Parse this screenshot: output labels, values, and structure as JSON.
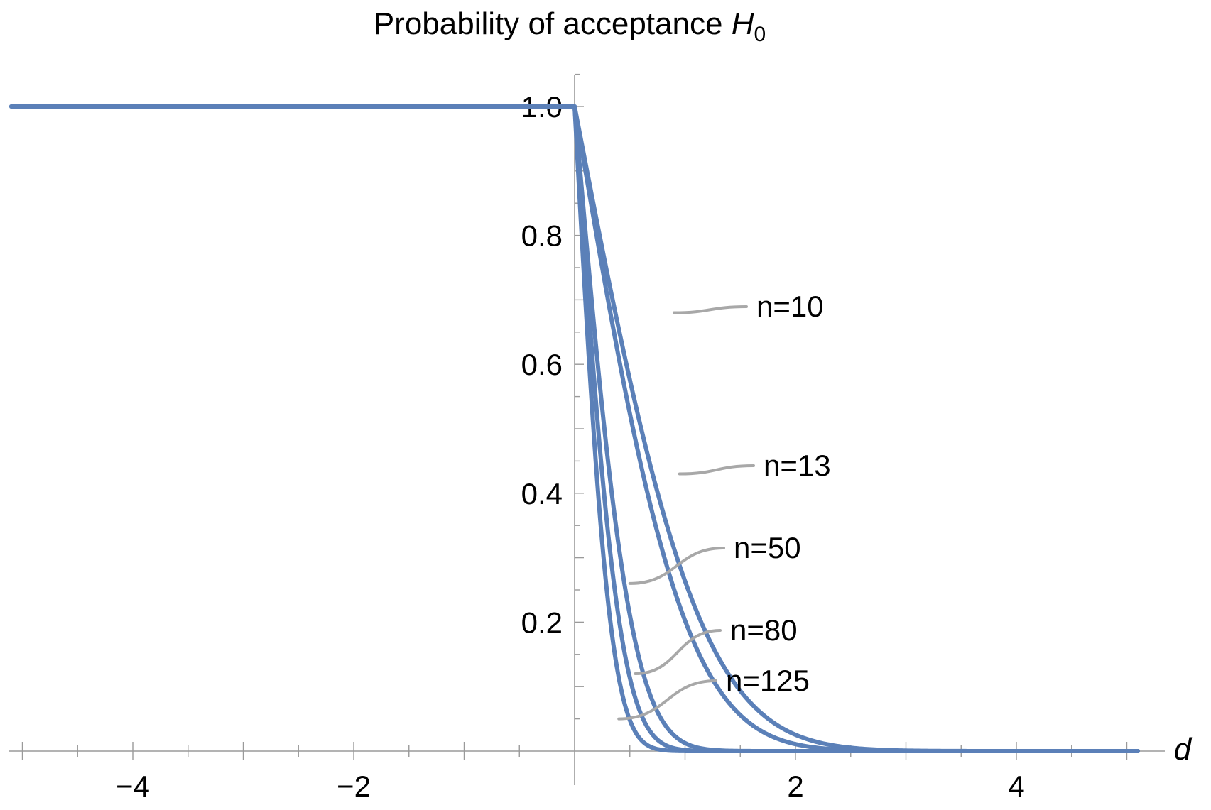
{
  "chart_data": {
    "type": "line",
    "title": "Probability of acceptance H",
    "title_subscript": "0",
    "title_variable": "H",
    "title_prefix": "Probability of acceptance ",
    "xlabel": "d",
    "ylabel": "",
    "xlim": [
      -5.1,
      5.1
    ],
    "ylim": [
      0,
      1.0
    ],
    "x_ticks_major": [
      -4,
      -2,
      2,
      4
    ],
    "x_tick_labels": [
      "−4",
      "−2",
      "2",
      "4"
    ],
    "y_ticks_major": [
      0.2,
      0.4,
      0.6,
      0.8,
      1.0
    ],
    "y_tick_labels": [
      "0.2",
      "0.4",
      "0.6",
      "0.8",
      "1.0"
    ],
    "grid": false,
    "colors": {
      "curve": "#5b80b8",
      "leader": "#a8a8a8"
    },
    "series": [
      {
        "name": "n=10",
        "n": 10,
        "label_at_x": 0.9,
        "label_at_y": 0.68
      },
      {
        "name": "n=13",
        "n": 13,
        "label_at_x": 0.95,
        "label_at_y": 0.43
      },
      {
        "name": "n=50",
        "n": 50,
        "label_at_x": 0.5,
        "label_at_y": 0.26
      },
      {
        "name": "n=80",
        "n": 80,
        "label_at_x": 0.55,
        "label_at_y": 0.12
      },
      {
        "name": "n=125",
        "n": 125,
        "label_at_x": 0.4,
        "label_at_y": 0.05
      }
    ]
  }
}
